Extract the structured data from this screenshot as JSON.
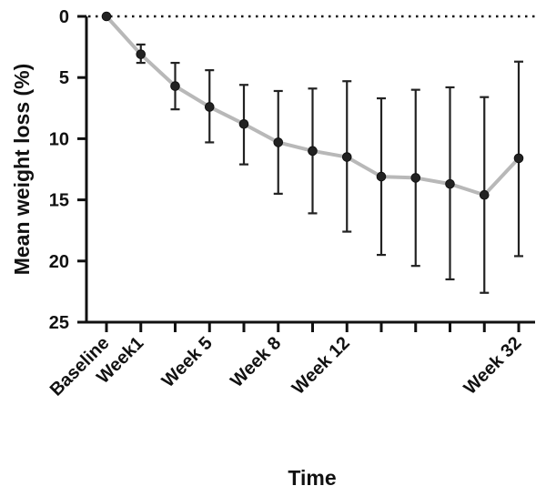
{
  "chart_data": {
    "type": "line",
    "title": "",
    "xlabel": "Time",
    "ylabel": "Mean weight loss (%)",
    "ylim": [
      0,
      25
    ],
    "y_inverted": true,
    "y_ticks": [
      0,
      5,
      10,
      15,
      20,
      25
    ],
    "reference_line": {
      "y": 0,
      "style": "dotted"
    },
    "grid": false,
    "legend": "none",
    "x_tick_labels": [
      {
        "index": 0,
        "label": "Baseline"
      },
      {
        "index": 1,
        "label": "Week1"
      },
      {
        "index": 3,
        "label": "Week 5"
      },
      {
        "index": 5,
        "label": "Week 8"
      },
      {
        "index": 7,
        "label": "Week 12"
      },
      {
        "index": 12,
        "label": "Week 32"
      }
    ],
    "series": [
      {
        "line_color": "#b8b8b8",
        "marker_color": "#222222",
        "points": [
          {
            "mean": 0.0,
            "err_low": 0.0,
            "err_high": 0.0
          },
          {
            "mean": 3.1,
            "err_low": 2.3,
            "err_high": 3.8
          },
          {
            "mean": 5.7,
            "err_low": 3.8,
            "err_high": 7.6
          },
          {
            "mean": 7.4,
            "err_low": 4.4,
            "err_high": 10.3
          },
          {
            "mean": 8.8,
            "err_low": 5.6,
            "err_high": 12.1
          },
          {
            "mean": 10.3,
            "err_low": 6.1,
            "err_high": 14.5
          },
          {
            "mean": 11.0,
            "err_low": 5.9,
            "err_high": 16.1
          },
          {
            "mean": 11.5,
            "err_low": 5.3,
            "err_high": 17.6
          },
          {
            "mean": 13.1,
            "err_low": 6.7,
            "err_high": 19.5
          },
          {
            "mean": 13.2,
            "err_low": 6.0,
            "err_high": 20.4
          },
          {
            "mean": 13.7,
            "err_low": 5.8,
            "err_high": 21.5
          },
          {
            "mean": 14.6,
            "err_low": 6.6,
            "err_high": 22.6
          },
          {
            "mean": 11.6,
            "err_low": 3.7,
            "err_high": 19.6
          }
        ]
      }
    ]
  }
}
